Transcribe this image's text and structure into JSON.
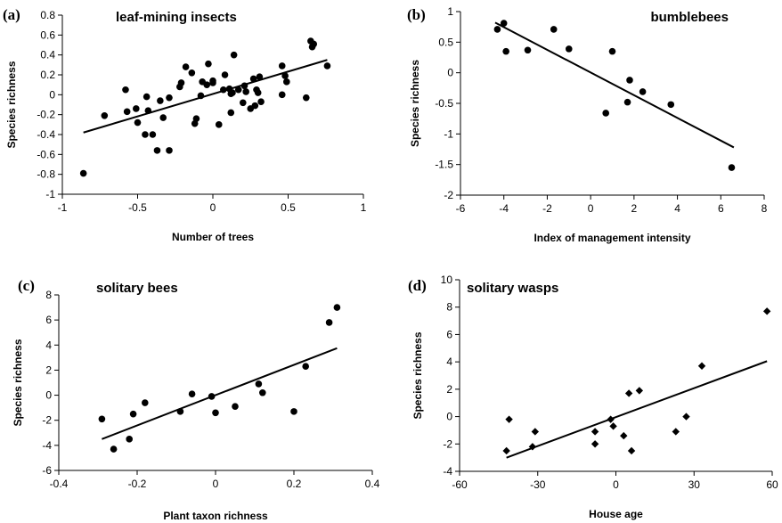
{
  "chart_data": [
    {
      "id": "a",
      "type": "scatter",
      "panel_label": "(a)",
      "title": "leaf-mining insects",
      "xlabel": "Number of trees",
      "ylabel": "Species richness",
      "xlim": [
        -1,
        1
      ],
      "ylim": [
        -1,
        0.8
      ],
      "xticks": [
        -1,
        -0.5,
        0,
        0.5,
        1
      ],
      "yticks": [
        -1,
        -0.8,
        -0.6,
        -0.4,
        -0.2,
        0,
        0.2,
        0.4,
        0.6,
        0.8
      ],
      "marker": "circle",
      "trendline": [
        [
          -0.86,
          -0.38
        ],
        [
          0.76,
          0.35
        ]
      ],
      "points": [
        [
          -0.86,
          -0.79
        ],
        [
          -0.72,
          -0.21
        ],
        [
          -0.58,
          0.05
        ],
        [
          -0.57,
          -0.17
        ],
        [
          -0.51,
          -0.14
        ],
        [
          -0.5,
          -0.28
        ],
        [
          -0.45,
          -0.4
        ],
        [
          -0.44,
          -0.02
        ],
        [
          -0.43,
          -0.16
        ],
        [
          -0.4,
          -0.4
        ],
        [
          -0.37,
          -0.56
        ],
        [
          -0.35,
          -0.06
        ],
        [
          -0.33,
          -0.23
        ],
        [
          -0.29,
          -0.56
        ],
        [
          -0.29,
          -0.03
        ],
        [
          -0.22,
          0.08
        ],
        [
          -0.21,
          0.12
        ],
        [
          -0.18,
          0.28
        ],
        [
          -0.14,
          0.22
        ],
        [
          -0.12,
          -0.29
        ],
        [
          -0.11,
          -0.24
        ],
        [
          -0.08,
          -0.01
        ],
        [
          -0.07,
          0.13
        ],
        [
          -0.04,
          0.1
        ],
        [
          -0.03,
          0.31
        ],
        [
          0.0,
          0.14
        ],
        [
          0.0,
          0.12
        ],
        [
          0.04,
          -0.3
        ],
        [
          0.07,
          0.05
        ],
        [
          0.08,
          0.2
        ],
        [
          0.11,
          0.06
        ],
        [
          0.12,
          0.01
        ],
        [
          0.12,
          -0.18
        ],
        [
          0.13,
          0.02
        ],
        [
          0.14,
          0.4
        ],
        [
          0.17,
          0.05
        ],
        [
          0.2,
          -0.08
        ],
        [
          0.21,
          0.09
        ],
        [
          0.22,
          0.03
        ],
        [
          0.25,
          -0.14
        ],
        [
          0.27,
          0.16
        ],
        [
          0.28,
          -0.11
        ],
        [
          0.29,
          0.05
        ],
        [
          0.3,
          0.02
        ],
        [
          0.32,
          -0.07
        ],
        [
          0.31,
          0.18
        ],
        [
          0.46,
          0.29
        ],
        [
          0.46,
          0.0
        ],
        [
          0.48,
          0.19
        ],
        [
          0.49,
          0.13
        ],
        [
          0.62,
          -0.03
        ],
        [
          0.65,
          0.54
        ],
        [
          0.66,
          0.48
        ],
        [
          0.67,
          0.51
        ],
        [
          0.76,
          0.29
        ]
      ]
    },
    {
      "id": "b",
      "type": "scatter",
      "panel_label": "(b)",
      "title": "bumblebees",
      "xlabel": "Index of management intensity",
      "ylabel": "Species richness",
      "xlim": [
        -6,
        8
      ],
      "ylim": [
        -2,
        1
      ],
      "xticks": [
        -6,
        -4,
        -2,
        0,
        2,
        4,
        6,
        8
      ],
      "yticks": [
        -2,
        -1.5,
        -1,
        -0.5,
        0,
        0.5,
        1
      ],
      "marker": "circle",
      "trendline": [
        [
          -4.4,
          0.82
        ],
        [
          6.6,
          -1.22
        ]
      ],
      "points": [
        [
          -4.3,
          0.71
        ],
        [
          -4.0,
          0.81
        ],
        [
          -3.9,
          0.35
        ],
        [
          -2.9,
          0.37
        ],
        [
          -1.7,
          0.71
        ],
        [
          -1.0,
          0.39
        ],
        [
          0.7,
          -0.66
        ],
        [
          1.0,
          0.35
        ],
        [
          1.7,
          -0.48
        ],
        [
          1.8,
          -0.12
        ],
        [
          2.4,
          -0.31
        ],
        [
          3.7,
          -0.52
        ],
        [
          6.5,
          -1.55
        ]
      ]
    },
    {
      "id": "c",
      "type": "scatter",
      "panel_label": "(c)",
      "title": "solitary bees",
      "xlabel": "Plant taxon richness",
      "ylabel": "Species richness",
      "xlim": [
        -0.4,
        0.4
      ],
      "ylim": [
        -6,
        8
      ],
      "xticks": [
        -0.4,
        -0.2,
        0,
        0.2,
        0.4
      ],
      "yticks": [
        -6,
        -4,
        -2,
        0,
        2,
        4,
        6,
        8
      ],
      "marker": "circle",
      "trendline": [
        [
          -0.29,
          -3.5
        ],
        [
          0.31,
          3.75
        ]
      ],
      "points": [
        [
          -0.29,
          -1.9
        ],
        [
          -0.26,
          -4.3
        ],
        [
          -0.22,
          -3.5
        ],
        [
          -0.21,
          -1.5
        ],
        [
          -0.18,
          -0.6
        ],
        [
          -0.09,
          -1.3
        ],
        [
          -0.06,
          0.1
        ],
        [
          -0.01,
          -0.1
        ],
        [
          0.0,
          -1.4
        ],
        [
          0.05,
          -0.9
        ],
        [
          0.11,
          0.9
        ],
        [
          0.12,
          0.2
        ],
        [
          0.2,
          -1.3
        ],
        [
          0.23,
          2.3
        ],
        [
          0.29,
          5.8
        ],
        [
          0.31,
          7.0
        ]
      ]
    },
    {
      "id": "d",
      "type": "scatter",
      "panel_label": "(d)",
      "title": "solitary wasps",
      "xlabel": "House age",
      "ylabel": "Species richness",
      "xlim": [
        -60,
        60
      ],
      "ylim": [
        -4,
        10
      ],
      "xticks": [
        -60,
        -30,
        0,
        30,
        60
      ],
      "yticks": [
        -4,
        -2,
        0,
        2,
        4,
        6,
        8,
        10
      ],
      "marker": "diamond",
      "trendline": [
        [
          -42,
          -3.0
        ],
        [
          58,
          4.05
        ]
      ],
      "points": [
        [
          -42,
          -2.5
        ],
        [
          -41,
          -0.2
        ],
        [
          -32,
          -2.2
        ],
        [
          -31,
          -1.1
        ],
        [
          -8,
          -1.1
        ],
        [
          -8,
          -2.0
        ],
        [
          -2,
          -0.2
        ],
        [
          -1,
          -0.7
        ],
        [
          3,
          -1.4
        ],
        [
          5,
          1.7
        ],
        [
          6,
          -2.5
        ],
        [
          9,
          1.9
        ],
        [
          23,
          -1.1
        ],
        [
          27,
          0.0
        ],
        [
          33,
          3.7
        ],
        [
          58,
          7.7
        ]
      ]
    }
  ]
}
